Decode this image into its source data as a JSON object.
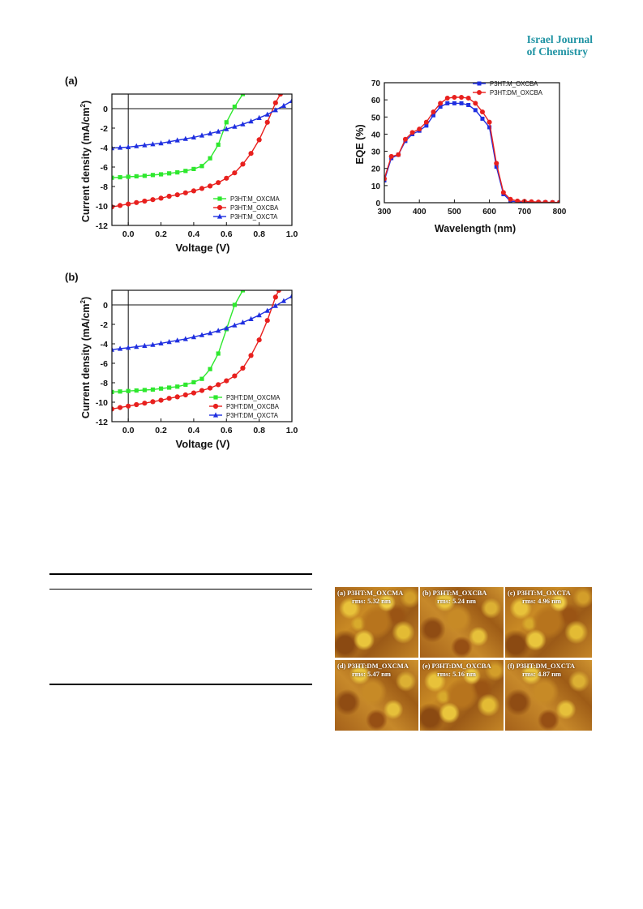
{
  "journal": {
    "line1": "Israel Journal",
    "line2": "of Chemistry"
  },
  "panel_a": {
    "label": "(a)",
    "xlabel": "Voltage (V)",
    "ylabel": "Current density (mA/cm",
    "ylabel_sup": "2",
    "ylabel_end": ")",
    "xticks": [
      "0.0",
      "0.2",
      "0.4",
      "0.6",
      "0.8",
      "1.0"
    ],
    "yticks": [
      "0",
      "-2",
      "-4",
      "-6",
      "-8",
      "-10",
      "-12"
    ]
  },
  "panel_b": {
    "label": "(b)",
    "xlabel": "Voltage (V)",
    "ylabel": "Current density (mA/cm",
    "ylabel_sup": "2",
    "ylabel_end": ")",
    "xticks": [
      "0.0",
      "0.2",
      "0.4",
      "0.6",
      "0.8",
      "1.0"
    ],
    "yticks": [
      "0",
      "-2",
      "-4",
      "-6",
      "-8",
      "-10",
      "-12"
    ]
  },
  "panel_eqe": {
    "xlabel": "Wavelength (nm)",
    "ylabel": "EQE (%)",
    "xticks": [
      "300",
      "400",
      "500",
      "600",
      "700",
      "800"
    ],
    "yticks": [
      "0",
      "10",
      "20",
      "30",
      "40",
      "50",
      "60",
      "70"
    ]
  },
  "colors": {
    "green": "#2ee82e",
    "red": "#e8201e",
    "blue": "#1f2fe0",
    "journal": "#1f93a3"
  },
  "chart_data": [
    {
      "type": "line",
      "panel": "(a)",
      "xlabel": "Voltage (V)",
      "ylabel": "Current density (mA/cm2)",
      "xlim": [
        -0.1,
        1.0
      ],
      "ylim": [
        -12,
        1.5
      ],
      "legend_position": "bottom-right",
      "series": [
        {
          "name": "P3HT:M_OXCMA",
          "color": "#2ee82e",
          "marker": "square",
          "x": [
            -0.1,
            -0.05,
            0.0,
            0.05,
            0.1,
            0.15,
            0.2,
            0.25,
            0.3,
            0.35,
            0.4,
            0.45,
            0.5,
            0.55,
            0.6,
            0.65,
            0.7
          ],
          "y": [
            -7.1,
            -7.05,
            -7.0,
            -6.95,
            -6.9,
            -6.82,
            -6.75,
            -6.65,
            -6.55,
            -6.4,
            -6.2,
            -5.9,
            -5.1,
            -3.7,
            -1.4,
            0.2,
            1.5
          ]
        },
        {
          "name": "P3HT:M_OXCBA",
          "color": "#e8201e",
          "marker": "circle",
          "x": [
            -0.1,
            -0.05,
            0.0,
            0.05,
            0.1,
            0.15,
            0.2,
            0.25,
            0.3,
            0.35,
            0.4,
            0.45,
            0.5,
            0.55,
            0.6,
            0.65,
            0.7,
            0.75,
            0.8,
            0.85,
            0.9,
            0.93
          ],
          "y": [
            -10.1,
            -9.95,
            -9.8,
            -9.65,
            -9.5,
            -9.35,
            -9.2,
            -9.0,
            -8.85,
            -8.65,
            -8.45,
            -8.2,
            -7.95,
            -7.6,
            -7.15,
            -6.6,
            -5.7,
            -4.6,
            -3.2,
            -1.4,
            0.6,
            1.5
          ]
        },
        {
          "name": "P3HT:M_OXCTA",
          "color": "#1f2fe0",
          "marker": "triangle",
          "x": [
            -0.1,
            -0.05,
            0.0,
            0.05,
            0.1,
            0.15,
            0.2,
            0.25,
            0.3,
            0.35,
            0.4,
            0.45,
            0.5,
            0.55,
            0.6,
            0.65,
            0.7,
            0.75,
            0.8,
            0.85,
            0.9,
            0.95,
            1.0
          ],
          "y": [
            -4.05,
            -4.0,
            -3.95,
            -3.85,
            -3.75,
            -3.65,
            -3.55,
            -3.4,
            -3.25,
            -3.1,
            -2.95,
            -2.75,
            -2.55,
            -2.35,
            -2.1,
            -1.85,
            -1.6,
            -1.3,
            -0.95,
            -0.6,
            -0.15,
            0.3,
            0.8
          ]
        }
      ]
    },
    {
      "type": "line",
      "panel": "(b)",
      "xlabel": "Voltage (V)",
      "ylabel": "Current density (mA/cm2)",
      "xlim": [
        -0.1,
        1.0
      ],
      "ylim": [
        -12,
        1.5
      ],
      "legend_position": "bottom-right",
      "series": [
        {
          "name": "P3HT:DM_OXCMA",
          "color": "#2ee82e",
          "marker": "square",
          "x": [
            -0.1,
            -0.05,
            0.0,
            0.05,
            0.1,
            0.15,
            0.2,
            0.25,
            0.3,
            0.35,
            0.4,
            0.45,
            0.5,
            0.55,
            0.6,
            0.65,
            0.7
          ],
          "y": [
            -8.95,
            -8.9,
            -8.85,
            -8.8,
            -8.75,
            -8.7,
            -8.6,
            -8.5,
            -8.4,
            -8.2,
            -7.95,
            -7.6,
            -6.6,
            -5.0,
            -2.5,
            0.0,
            1.5
          ]
        },
        {
          "name": "P3HT:DM_OXCBA",
          "color": "#e8201e",
          "marker": "circle",
          "x": [
            -0.1,
            -0.05,
            0.0,
            0.05,
            0.1,
            0.15,
            0.2,
            0.25,
            0.3,
            0.35,
            0.4,
            0.45,
            0.5,
            0.55,
            0.6,
            0.65,
            0.7,
            0.75,
            0.8,
            0.85,
            0.9,
            0.92
          ],
          "y": [
            -10.7,
            -10.55,
            -10.4,
            -10.25,
            -10.1,
            -9.95,
            -9.8,
            -9.6,
            -9.45,
            -9.25,
            -9.05,
            -8.8,
            -8.55,
            -8.2,
            -7.8,
            -7.3,
            -6.5,
            -5.2,
            -3.6,
            -1.6,
            0.8,
            1.5
          ]
        },
        {
          "name": "P3HT:DM_OXCTA",
          "color": "#1f2fe0",
          "marker": "triangle",
          "x": [
            -0.1,
            -0.05,
            0.0,
            0.05,
            0.1,
            0.15,
            0.2,
            0.25,
            0.3,
            0.35,
            0.4,
            0.45,
            0.5,
            0.55,
            0.6,
            0.65,
            0.7,
            0.75,
            0.8,
            0.85,
            0.9,
            0.95,
            1.0
          ],
          "y": [
            -4.6,
            -4.5,
            -4.4,
            -4.3,
            -4.2,
            -4.1,
            -3.95,
            -3.8,
            -3.65,
            -3.5,
            -3.3,
            -3.1,
            -2.9,
            -2.65,
            -2.4,
            -2.1,
            -1.8,
            -1.45,
            -1.05,
            -0.6,
            -0.1,
            0.4,
            0.9
          ]
        }
      ]
    },
    {
      "type": "line",
      "panel": "EQE",
      "xlabel": "Wavelength (nm)",
      "ylabel": "EQE (%)",
      "xlim": [
        300,
        800
      ],
      "ylim": [
        0,
        70
      ],
      "legend_position": "top-right",
      "series": [
        {
          "name": "P3HT:M_OXCBA",
          "color": "#1f2fe0",
          "marker": "square",
          "x": [
            300,
            320,
            340,
            360,
            380,
            400,
            420,
            440,
            460,
            480,
            500,
            520,
            540,
            560,
            580,
            600,
            620,
            640,
            660,
            680,
            700,
            720,
            740,
            760,
            780,
            800
          ],
          "y": [
            13,
            26,
            28,
            36,
            40,
            42,
            45,
            51,
            56,
            58,
            58,
            58,
            57,
            54,
            49,
            44,
            21,
            5,
            1,
            0.5,
            0.5,
            0.3,
            0.2,
            0.2,
            0.1,
            0.1
          ]
        },
        {
          "name": "P3HT:DM_OXCBA",
          "color": "#e8201e",
          "marker": "circle",
          "x": [
            300,
            320,
            340,
            360,
            380,
            400,
            420,
            440,
            460,
            480,
            500,
            520,
            540,
            560,
            580,
            600,
            620,
            640,
            660,
            680,
            700,
            720,
            740,
            760,
            780,
            800
          ],
          "y": [
            14,
            27,
            28,
            37,
            41,
            43,
            47,
            53,
            58,
            61,
            61.5,
            61.5,
            61,
            58,
            53,
            47,
            23,
            6,
            2,
            1,
            0.8,
            0.6,
            0.4,
            0.3,
            0.2,
            0.2
          ]
        }
      ]
    }
  ],
  "afm": [
    {
      "label": "(a) P3HT:M_OXCMA",
      "rms": "rms: 5.32 nm"
    },
    {
      "label": "(b) P3HT:M_OXCBA",
      "rms": "rms: 5.24 nm"
    },
    {
      "label": "(c) P3HT:M_OXCTA",
      "rms": "rms: 4.96 nm"
    },
    {
      "label": "(d) P3HT:DM_OXCMA",
      "rms": "rms: 5.47 nm"
    },
    {
      "label": "(e) P3HT:DM_OXCBA",
      "rms": "rms: 5.16 nm"
    },
    {
      "label": "(f) P3HT:DM_OXCTA",
      "rms": "rms: 4.87 nm"
    }
  ]
}
